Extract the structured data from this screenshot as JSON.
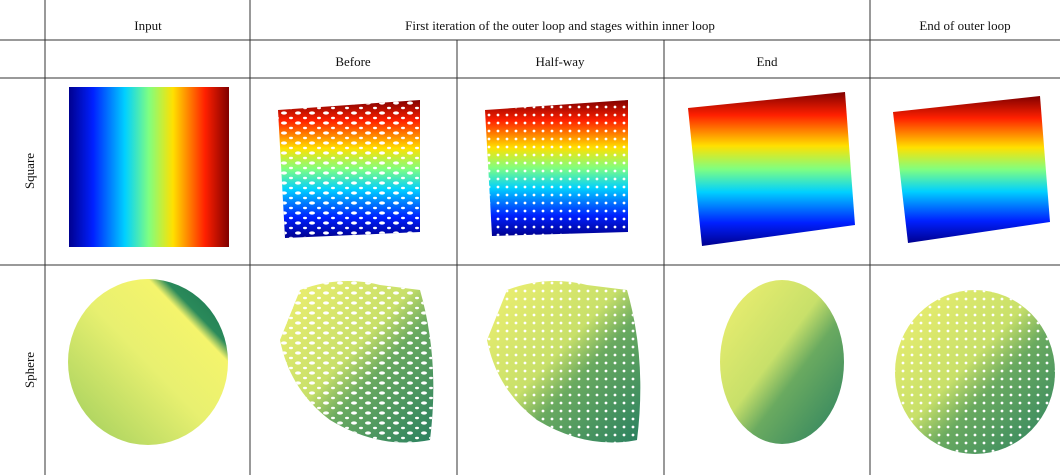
{
  "header": {
    "input": "Input",
    "first_iteration": "First iteration of the outer loop and stages within inner loop",
    "end_outer": "End of outer loop"
  },
  "subheader": {
    "before": "Before",
    "half_way": "Half-way",
    "end": "End"
  },
  "rows": {
    "square": "Square",
    "sphere": "Sphere"
  }
}
